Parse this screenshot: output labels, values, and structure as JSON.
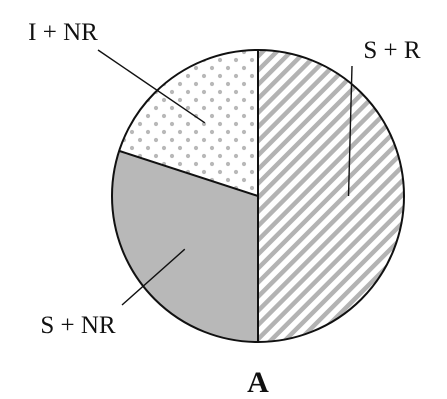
{
  "chart_data": {
    "type": "pie",
    "panel_label": "A",
    "start_angle_from_top_deg": 0,
    "direction": "clockwise",
    "slices": [
      {
        "label": "S + R",
        "value": 50,
        "color": "#ffffff",
        "pattern": "diagonal-hatch",
        "pattern_color": "#b3b3b3",
        "label_anchor": "upper-right"
      },
      {
        "label": "S + NR",
        "value": 30,
        "color": "#b8b8b8",
        "pattern": "solid",
        "label_anchor": "lower-left"
      },
      {
        "label": "I + NR",
        "value": 20,
        "color": "#ffffff",
        "pattern": "dots",
        "pattern_color": "#b8b8b8",
        "label_anchor": "upper-left"
      }
    ],
    "outline_color": "#111111"
  }
}
